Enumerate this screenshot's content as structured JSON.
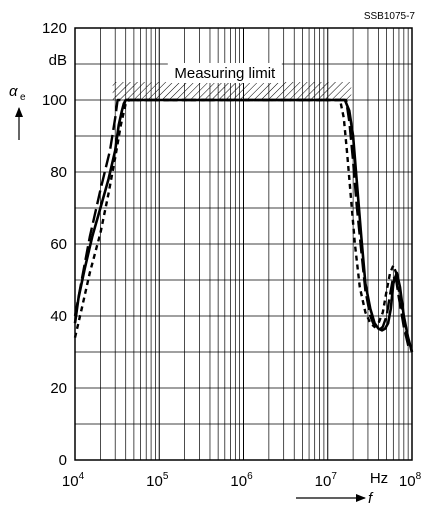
{
  "chart_data": {
    "type": "line",
    "code": "SSB1075-7",
    "ylabel_symbol": "α",
    "ylabel_sub": "e",
    "yunit": "dB",
    "xunit": "Hz",
    "xlabel": "f",
    "annotation": "Measuring limit",
    "x_scale": "log",
    "xlim": [
      10000,
      100000000
    ],
    "ylim": [
      0,
      120
    ],
    "grid": true,
    "y_ticks": [
      0,
      20,
      40,
      60,
      80,
      100,
      120
    ],
    "x_ticks": [
      {
        "base": "10",
        "exp": "4"
      },
      {
        "base": "10",
        "exp": "5"
      },
      {
        "base": "10",
        "exp": "6"
      },
      {
        "base": "10",
        "exp": "7"
      },
      {
        "base": "10",
        "exp": "8"
      }
    ],
    "measuring_limit_band": [
      100,
      105
    ],
    "series": [
      {
        "style": "solid",
        "x": [
          10000,
          11000,
          13000,
          16000,
          20000,
          25000,
          30000,
          33000,
          36000,
          38000,
          40000,
          16000000,
          18000000,
          20000000,
          22000000,
          25000000,
          28000000,
          32000000,
          36000000,
          40000000,
          44000000,
          48000000,
          52000000,
          56000000,
          60000000,
          66000000,
          72000000,
          80000000,
          90000000,
          100000000
        ],
        "y": [
          38,
          45,
          53,
          62,
          70,
          78,
          86,
          93,
          97,
          99,
          100,
          100,
          97,
          90,
          78,
          62,
          49,
          42,
          38,
          36.5,
          36,
          36.5,
          38,
          42,
          49,
          52,
          48,
          40,
          34,
          30
        ]
      },
      {
        "style": "dashed",
        "x": [
          10000,
          12000,
          15000,
          20000,
          26000,
          30000,
          32000,
          16500000,
          18000000,
          20000000,
          22000000,
          25000000,
          28000000,
          32000000,
          36000000,
          40000000,
          45000000,
          50000000,
          55000000,
          60000000,
          65000000,
          70000000,
          80000000,
          92000000
        ],
        "y": [
          40,
          50,
          62,
          75,
          86,
          95,
          100,
          100,
          94,
          83,
          71,
          58,
          47,
          40,
          37,
          36,
          37,
          40,
          46,
          51,
          50,
          45,
          37,
          31
        ]
      },
      {
        "style": "dotted",
        "x": [
          10000,
          12000,
          15000,
          20000,
          25000,
          30000,
          35000,
          40000,
          44000,
          14000000,
          15500000,
          17000000,
          19000000,
          21000000,
          24000000,
          28000000,
          32000000,
          36000000,
          40000000,
          45000000,
          50000000,
          55000000,
          60000000,
          65000000,
          70000000,
          80000000,
          90000000,
          100000000
        ],
        "y": [
          34,
          42,
          52,
          63,
          74,
          84,
          93,
          99,
          100,
          100,
          95,
          85,
          72,
          60,
          48,
          41,
          38,
          37,
          38,
          41,
          47,
          52,
          54,
          52,
          47,
          39,
          33,
          30
        ]
      }
    ]
  }
}
